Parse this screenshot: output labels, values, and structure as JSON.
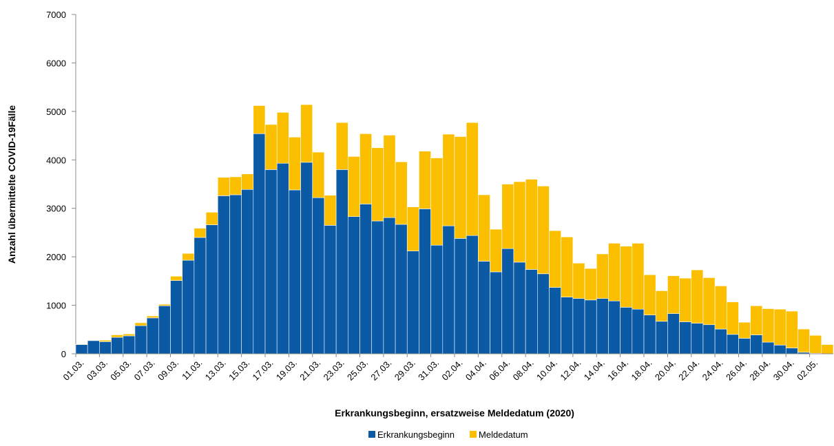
{
  "chart_data": {
    "type": "stacked_bar",
    "x_label": "Erkrankungsbeginn, ersatzweise Meldedatum (2020)",
    "y_label": "Anzahl übermittelte COVID-19Fälle",
    "categories": [
      "01.03.",
      null,
      "03.03.",
      null,
      "05.03.",
      null,
      "07.03.",
      null,
      "09.03.",
      null,
      "11.03.",
      null,
      "13.03.",
      null,
      "15.03.",
      null,
      "17.03.",
      null,
      "19.03.",
      null,
      "21.03.",
      null,
      "23.03.",
      null,
      "25.03.",
      null,
      "27.03.",
      null,
      "29.03.",
      null,
      "31.03.",
      null,
      "02.04.",
      null,
      "04.04.",
      null,
      "06.04.",
      null,
      "08.04.",
      null,
      "10.04.",
      null,
      "12.04.",
      null,
      "14.04.",
      null,
      "16.04.",
      null,
      "18.04.",
      null,
      "20.04.",
      null,
      "22.04.",
      null,
      "24.04.",
      null,
      "26.04.",
      null,
      "28.04.",
      null,
      "30.04.",
      null,
      "02.05.",
      null
    ],
    "series": [
      {
        "name": "Erkrankungsbeginn",
        "color": "#0a5aa5",
        "values": [
          190,
          270,
          250,
          340,
          370,
          580,
          740,
          990,
          1510,
          1930,
          2400,
          2660,
          3260,
          3280,
          3390,
          4540,
          3800,
          3930,
          3380,
          3950,
          3220,
          2650,
          3800,
          2830,
          3090,
          2740,
          2810,
          2670,
          2120,
          2990,
          2240,
          2640,
          2380,
          2440,
          1910,
          1690,
          2170,
          1890,
          1740,
          1650,
          1370,
          1170,
          1140,
          1110,
          1140,
          1090,
          960,
          920,
          800,
          670,
          830,
          660,
          630,
          600,
          510,
          400,
          320,
          390,
          240,
          180,
          120,
          30,
          10,
          0
        ]
      },
      {
        "name": "Meldedatum",
        "color": "#fcbf00",
        "values": [
          10,
          0,
          30,
          50,
          40,
          60,
          40,
          30,
          90,
          140,
          190,
          260,
          380,
          370,
          320,
          580,
          930,
          1050,
          1090,
          1190,
          940,
          620,
          970,
          1240,
          1450,
          1510,
          1700,
          1290,
          910,
          1190,
          1800,
          1890,
          2100,
          2330,
          1370,
          880,
          1330,
          1660,
          1860,
          1810,
          1170,
          1240,
          730,
          650,
          920,
          1190,
          1260,
          1360,
          830,
          630,
          780,
          900,
          1100,
          970,
          890,
          670,
          330,
          600,
          690,
          740,
          760,
          480,
          370,
          190
        ]
      }
    ],
    "ylim": [
      0,
      7000
    ],
    "yticks": [
      0,
      1000,
      2000,
      3000,
      4000,
      5000,
      6000,
      7000
    ],
    "grid": false,
    "legend": "bottom"
  }
}
